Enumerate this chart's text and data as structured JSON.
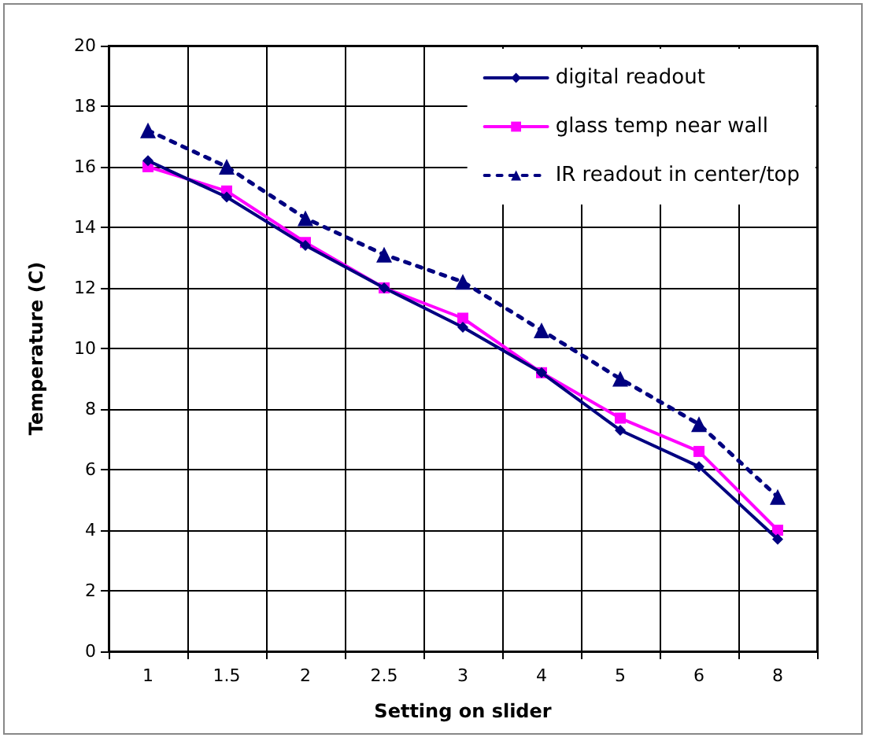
{
  "chart_data": {
    "type": "line",
    "xlabel": "Setting on slider",
    "ylabel": "Temperature (C)",
    "categories": [
      "1",
      "1.5",
      "2",
      "2.5",
      "3",
      "4",
      "5",
      "6",
      "8"
    ],
    "series": [
      {
        "name": "digital readout",
        "color": "#000080",
        "marker": "diamond",
        "line_style": "solid",
        "values": [
          16.2,
          15.0,
          13.4,
          12.0,
          10.7,
          9.2,
          7.3,
          6.1,
          3.7
        ]
      },
      {
        "name": "glass temp near wall",
        "color": "#ff00ff",
        "marker": "square",
        "line_style": "solid",
        "values": [
          16.0,
          15.2,
          13.5,
          12.0,
          11.0,
          9.2,
          7.7,
          6.6,
          4.0
        ]
      },
      {
        "name": "IR readout in center/top",
        "color": "#000080",
        "marker": "triangle",
        "line_style": "dotted",
        "values": [
          17.2,
          16.0,
          14.3,
          13.1,
          12.2,
          10.6,
          9.0,
          7.5,
          5.1
        ]
      }
    ],
    "ylim": [
      0,
      20
    ],
    "yticks": [
      0,
      2,
      4,
      6,
      8,
      10,
      12,
      14,
      16,
      18,
      20
    ],
    "grid": true,
    "legend": "top right"
  }
}
